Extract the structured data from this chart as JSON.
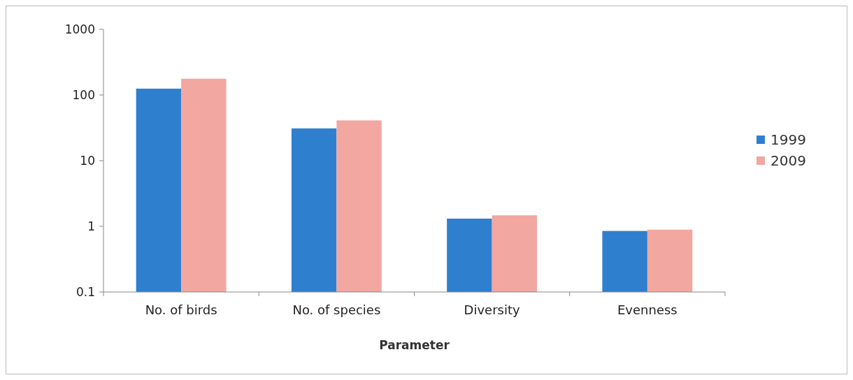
{
  "chart_data": {
    "type": "bar",
    "xlabel": "Parameter",
    "categories": [
      "No. of birds",
      "No. of species",
      "Diversity",
      "Evenness"
    ],
    "series": [
      {
        "name": "1999",
        "color": "#2f7fcf",
        "values": [
          125,
          31,
          1.31,
          0.85
        ]
      },
      {
        "name": "2009",
        "color": "#f2a7a0",
        "values": [
          177,
          41,
          1.47,
          0.89
        ]
      }
    ],
    "log": "y",
    "ylim": [
      0.1,
      1000
    ],
    "yticks": [
      0.1,
      1,
      10,
      100,
      1000
    ],
    "legend": "right",
    "grid": false
  }
}
